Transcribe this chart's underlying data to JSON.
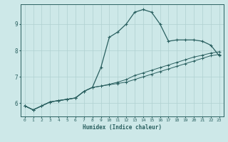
{
  "xlabel": "Humidex (Indice chaleur)",
  "background_color": "#cde8e8",
  "grid_color": "#b0d0d0",
  "line_color": "#2a6060",
  "xlim": [
    -0.5,
    23.5
  ],
  "ylim": [
    5.5,
    9.75
  ],
  "yticks": [
    6,
    7,
    8,
    9
  ],
  "xticks": [
    0,
    1,
    2,
    3,
    4,
    5,
    6,
    7,
    8,
    9,
    10,
    11,
    12,
    13,
    14,
    15,
    16,
    17,
    18,
    19,
    20,
    21,
    22,
    23
  ],
  "line1_x": [
    0,
    1,
    2,
    3,
    4,
    5,
    6,
    7,
    8,
    9,
    10,
    11,
    12,
    13,
    14,
    15,
    16,
    17,
    18,
    19,
    20,
    21,
    22,
    23
  ],
  "line1_y": [
    5.9,
    5.75,
    5.9,
    6.05,
    6.1,
    6.15,
    6.2,
    6.45,
    6.6,
    7.35,
    8.5,
    8.7,
    9.0,
    9.45,
    9.55,
    9.45,
    9.0,
    8.35,
    8.4,
    8.4,
    8.4,
    8.35,
    8.2,
    7.8
  ],
  "line2_x": [
    0,
    1,
    2,
    3,
    4,
    5,
    6,
    7,
    8,
    9,
    10,
    11,
    12,
    13,
    14,
    15,
    16,
    17,
    18,
    19,
    20,
    21,
    22,
    23
  ],
  "line2_y": [
    5.9,
    5.75,
    5.9,
    6.05,
    6.1,
    6.15,
    6.2,
    6.45,
    6.6,
    6.65,
    6.7,
    6.75,
    6.8,
    6.9,
    7.0,
    7.1,
    7.2,
    7.3,
    7.4,
    7.5,
    7.6,
    7.7,
    7.8,
    7.85
  ],
  "line3_x": [
    0,
    1,
    2,
    3,
    4,
    5,
    6,
    7,
    8,
    9,
    10,
    11,
    12,
    13,
    14,
    15,
    16,
    17,
    18,
    19,
    20,
    21,
    22,
    23
  ],
  "line3_y": [
    5.9,
    5.75,
    5.9,
    6.05,
    6.1,
    6.15,
    6.2,
    6.45,
    6.6,
    6.65,
    6.72,
    6.8,
    6.9,
    7.05,
    7.15,
    7.25,
    7.35,
    7.45,
    7.55,
    7.65,
    7.75,
    7.82,
    7.9,
    7.95
  ]
}
